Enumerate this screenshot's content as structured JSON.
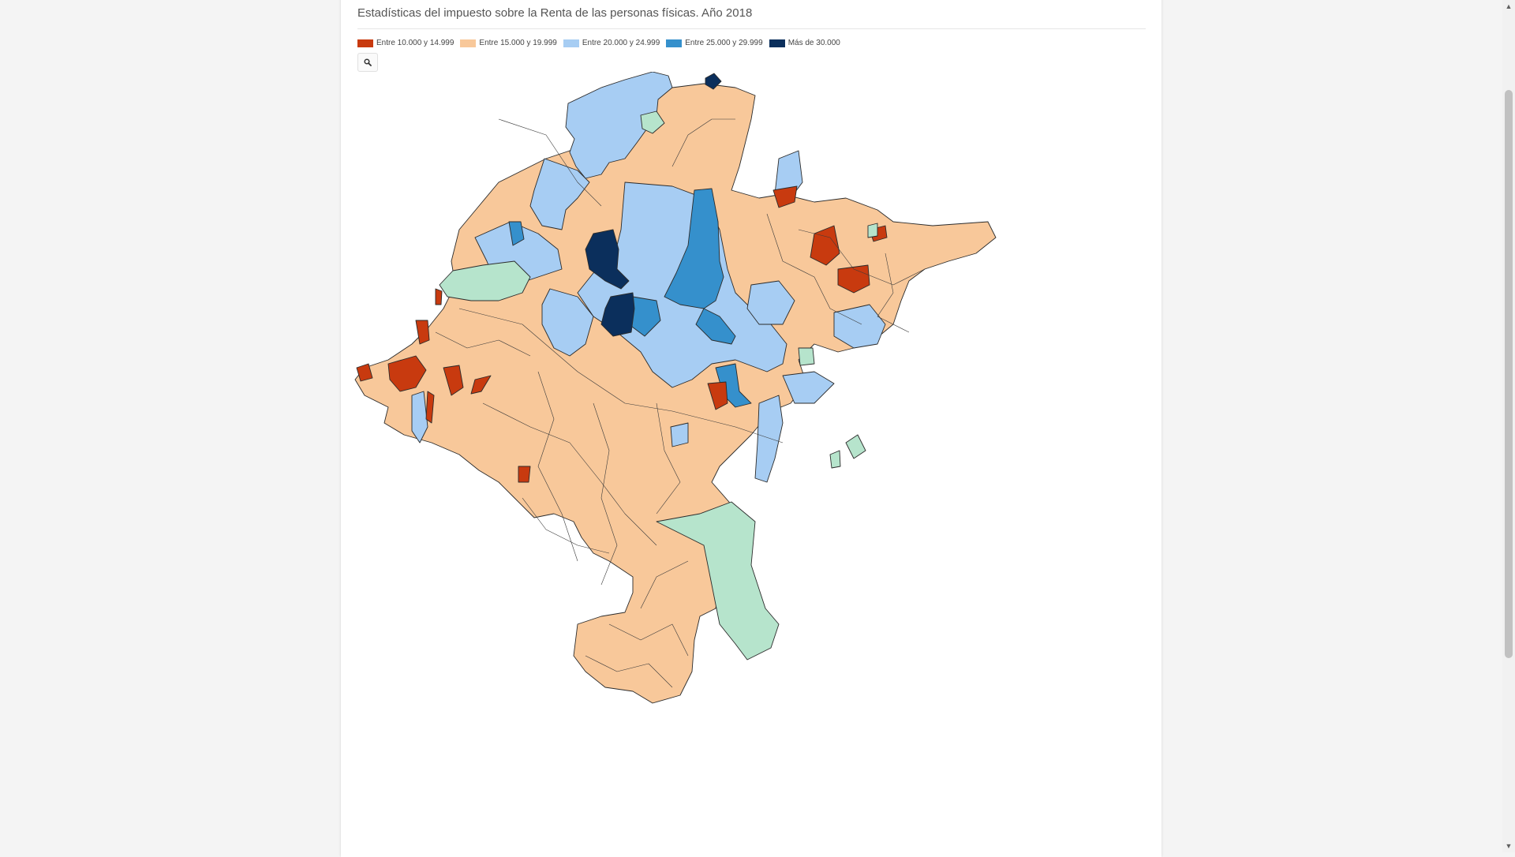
{
  "subtitle": "Estadísticas del impuesto sobre la Renta de las personas físicas. Año 2018",
  "legend": [
    {
      "label": "Entre 10.000 y 14.999",
      "color": "#c83a0f"
    },
    {
      "label": "Entre 15.000 y 19.999",
      "color": "#f8c89a"
    },
    {
      "label": "Entre 20.000 y 24.999",
      "color": "#a7cdf3"
    },
    {
      "label": "Entre 25.000 y 29.999",
      "color": "#3590cc"
    },
    {
      "label": "Más de 30.000",
      "color": "#0b2f5c"
    }
  ],
  "unlisted_color": "#b6e4cc",
  "zoom_icon": "search-icon",
  "scroll_up_icon": "scroll-up-arrow-icon",
  "scroll_down_icon": "scroll-down-arrow-icon"
}
